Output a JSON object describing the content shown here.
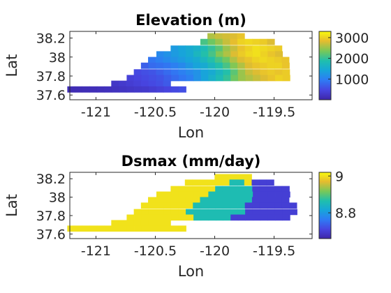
{
  "chart_data": [
    {
      "type": "heatmap",
      "title": "Elevation (m)",
      "xlabel": "Lon",
      "ylabel": "Lat",
      "xlim": [
        -121.22,
        -119.18
      ],
      "ylim": [
        37.55,
        38.27
      ],
      "xticks": [
        -121,
        -120.5,
        -120,
        -119.5
      ],
      "yticks": [
        37.6,
        37.8,
        38,
        38.2
      ],
      "xtick_labels": [
        "-121",
        "-120.5",
        "-120",
        "-119.5"
      ],
      "ytick_labels": [
        "37.6",
        "37.8",
        "38",
        "38.2"
      ],
      "colormap": "parula",
      "colorbar": {
        "min": 0,
        "max": 3300,
        "ticks": [
          1000,
          2000,
          3000
        ],
        "tick_labels": [
          "1000",
          "2000",
          "3000"
        ]
      },
      "grid": false,
      "cell_size_deg": 0.0625,
      "lat_rows": [
        38.22,
        38.16,
        38.09,
        38.03,
        37.97,
        37.91,
        37.84,
        37.78,
        37.72,
        37.66,
        37.59
      ],
      "rows": [
        {
          "lon_start": -120.03,
          "values": [
            2600,
            2700,
            2750,
            2800,
            2900
          ]
        },
        {
          "lon_start": -120.09,
          "values": [
            2100,
            2300,
            2500,
            2700,
            2850,
            3000,
            3050,
            3000,
            2950,
            2800
          ]
        },
        {
          "lon_start": -120.34,
          "values": [
            1300,
            1400,
            1500,
            1600,
            1800,
            2000,
            2200,
            2500,
            2700,
            2900,
            3000,
            3100,
            3050,
            3000,
            2950
          ]
        },
        {
          "lon_start": -120.46,
          "values": [
            1100,
            1200,
            1300,
            1400,
            1500,
            1700,
            1900,
            2100,
            2400,
            2600,
            2800,
            2950,
            3050,
            3100,
            3000,
            2900,
            2800
          ]
        },
        {
          "lon_start": -120.53,
          "values": [
            900,
            1000,
            1100,
            1200,
            1300,
            1400,
            1500,
            1700,
            1900,
            2100,
            2300,
            2600,
            2800,
            2900,
            3000,
            3050,
            3000,
            2950,
            2900
          ]
        },
        {
          "lon_start": -120.59,
          "values": [
            700,
            800,
            850,
            900,
            1000,
            1100,
            1250,
            1400,
            1500,
            1700,
            1900,
            2100,
            2400,
            2600,
            2800,
            2900,
            2950,
            3000,
            3000,
            2900
          ]
        },
        {
          "lon_start": -120.65,
          "values": [
            500,
            550,
            600,
            700,
            800,
            900,
            1000,
            1100,
            1200,
            1400,
            1500,
            1700,
            1900,
            2200,
            2500,
            2700,
            2800,
            2900,
            2950,
            2900,
            2950
          ]
        },
        {
          "lon_start": -120.71,
          "values": [
            400,
            450,
            500,
            550,
            600,
            700,
            800,
            900,
            1000,
            1200,
            1400,
            1600,
            1800,
            2000,
            2300,
            2500,
            2600,
            2700,
            2800,
            2900,
            3000,
            2950
          ]
        },
        {
          "lon_start": -120.84,
          "values": [
            250,
            300,
            350,
            400,
            450,
            500,
            550,
            650
          ]
        },
        {
          "lon_start": -121.21,
          "values": [
            100,
            110,
            120,
            130,
            150,
            170,
            190,
            220,
            250,
            280,
            300,
            350,
            400,
            450,
            500,
            550
          ]
        }
      ]
    },
    {
      "type": "heatmap",
      "title": "Dsmax (mm/day)",
      "xlabel": "Lon",
      "ylabel": "Lat",
      "xlim": [
        -121.22,
        -119.18
      ],
      "ylim": [
        37.55,
        38.27
      ],
      "xticks": [
        -121,
        -120.5,
        -120,
        -119.5
      ],
      "yticks": [
        37.6,
        37.8,
        38,
        38.2
      ],
      "xtick_labels": [
        "-121",
        "-120.5",
        "-120",
        "-119.5"
      ],
      "ytick_labels": [
        "37.6",
        "37.8",
        "38",
        "38.2"
      ],
      "colormap": "parula",
      "colorbar": {
        "min": 8.66,
        "max": 9.02,
        "ticks": [
          8.8,
          9
        ],
        "tick_labels": [
          "8.8",
          "9"
        ]
      },
      "grid": false,
      "cell_size_deg": 0.0625,
      "lat_rows": [
        38.22,
        38.16,
        38.09,
        38.03,
        37.97,
        37.91,
        37.84,
        37.78,
        37.72,
        37.66,
        37.59
      ],
      "rows": [
        {
          "lon_start": -119.97,
          "values": [
            9.0,
            9.0,
            9.0,
            9.0,
            9.0
          ]
        },
        {
          "lon_start": -120.22,
          "values": [
            9.0,
            9.0,
            9.0,
            9.0,
            9.0,
            9.0,
            8.86,
            8.86,
            9.0,
            8.7,
            8.7,
            8.7
          ]
        },
        {
          "lon_start": -120.34,
          "values": [
            9.0,
            9.0,
            9.0,
            9.0,
            9.0,
            9.0,
            8.86,
            8.86,
            8.86,
            8.86,
            8.86,
            8.7,
            8.7,
            8.7,
            8.7,
            8.7
          ]
        },
        {
          "lon_start": -120.46,
          "values": [
            9.0,
            9.0,
            9.0,
            9.0,
            9.0,
            9.0,
            9.0,
            8.86,
            8.86,
            8.86,
            8.86,
            8.86,
            8.86,
            8.7,
            8.7,
            8.7,
            8.7,
            8.7
          ]
        },
        {
          "lon_start": -120.53,
          "values": [
            9.0,
            9.0,
            9.0,
            9.0,
            9.0,
            9.0,
            9.0,
            8.86,
            8.86,
            8.86,
            8.86,
            8.86,
            8.86,
            8.86,
            8.7,
            8.7,
            8.7,
            8.7,
            8.7
          ]
        },
        {
          "lon_start": -120.59,
          "values": [
            9.0,
            9.0,
            9.0,
            9.0,
            9.0,
            9.0,
            9.0,
            8.86,
            8.86,
            8.86,
            8.86,
            8.86,
            8.86,
            8.86,
            8.7,
            8.7,
            8.7,
            8.7,
            8.7,
            8.7,
            8.7
          ]
        },
        {
          "lon_start": -120.65,
          "values": [
            9.0,
            9.0,
            9.0,
            9.0,
            9.0,
            9.0,
            9.0,
            8.86,
            8.86,
            8.86,
            8.86,
            8.86,
            8.86,
            8.86,
            8.86,
            8.7,
            8.7,
            8.7,
            8.7,
            8.7,
            8.7,
            8.7
          ]
        },
        {
          "lon_start": -120.71,
          "values": [
            9.0,
            9.0,
            9.0,
            9.0,
            9.0,
            9.0,
            9.0,
            9.0,
            9.0,
            8.86,
            8.86,
            8.86,
            8.86,
            8.86,
            8.7,
            8.7,
            8.7,
            8.7,
            8.7,
            8.7,
            8.7,
            8.7
          ]
        },
        {
          "lon_start": -120.84,
          "values": [
            9.0,
            9.0,
            9.0,
            9.0,
            9.0,
            9.0,
            9.0,
            9.0
          ]
        },
        {
          "lon_start": -121.21,
          "values": [
            9.0,
            9.0,
            9.0,
            9.0,
            9.0,
            9.0,
            9.0,
            9.0,
            9.0,
            9.0,
            9.0,
            9.0,
            9.0,
            9.0,
            9.0,
            9.0
          ]
        }
      ]
    }
  ]
}
